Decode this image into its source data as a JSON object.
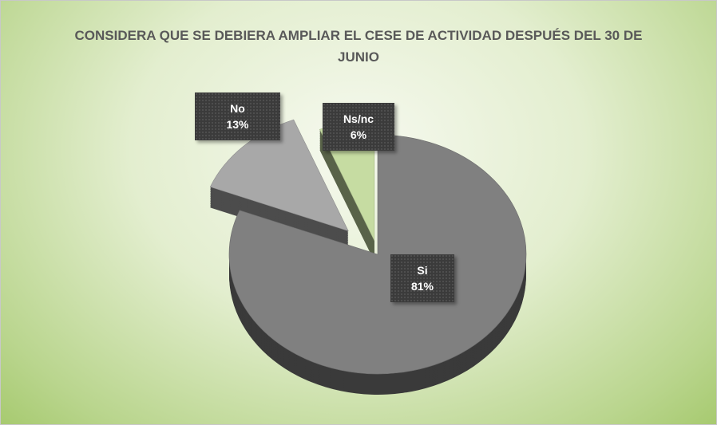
{
  "chart_data": {
    "type": "pie",
    "title": "CONSIDERA QUE SE DEBIERA AMPLIAR EL CESE DE ACTIVIDAD  DESPUÉS DEL 30 DE JUNIO",
    "categories": [
      "Si",
      "No",
      "Ns/nc"
    ],
    "values": [
      81,
      13,
      6
    ],
    "value_labels": [
      "81%",
      "13%",
      "6%"
    ],
    "colors": [
      "#808080",
      "#a8a8a8",
      "#c6dca2"
    ]
  }
}
